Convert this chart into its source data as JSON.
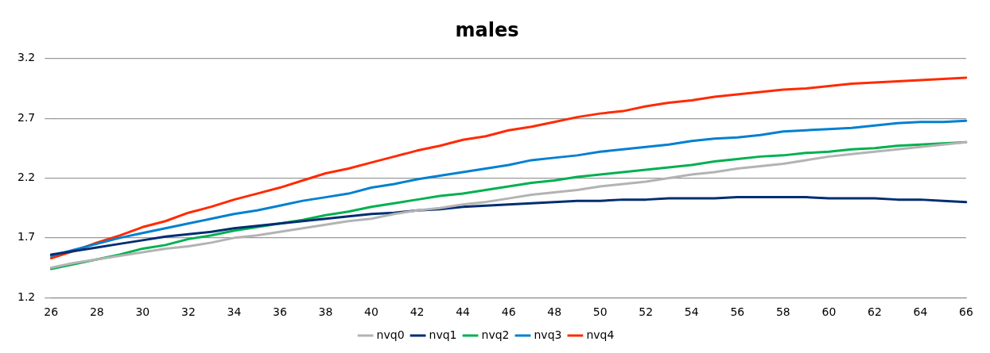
{
  "chart_data": {
    "type": "line",
    "title": "males",
    "categories": [
      "26",
      null,
      "28",
      null,
      "30",
      null,
      "32",
      null,
      "34",
      null,
      "36",
      null,
      "38",
      null,
      "40",
      null,
      "42",
      null,
      "44",
      null,
      "46",
      null,
      "48",
      null,
      "50",
      null,
      "52",
      null,
      "54",
      null,
      "56",
      null,
      "58",
      null,
      "60",
      null,
      "62",
      null,
      "64",
      null,
      "66"
    ],
    "series": [
      {
        "name": "nvq0",
        "color": "#b3b3b3",
        "values": [
          1.45,
          1.49,
          1.52,
          1.55,
          1.58,
          1.61,
          1.63,
          1.66,
          1.7,
          1.72,
          1.75,
          1.78,
          1.81,
          1.84,
          1.86,
          1.9,
          1.93,
          1.95,
          1.98,
          2.0,
          2.03,
          2.06,
          2.08,
          2.1,
          2.13,
          2.15,
          2.17,
          2.2,
          2.23,
          2.25,
          2.28,
          2.3,
          2.32,
          2.35,
          2.38,
          2.4,
          2.42,
          2.44,
          2.46,
          2.48,
          2.5
        ]
      },
      {
        "name": "nvq1",
        "color": "#002d72",
        "values": [
          1.56,
          1.59,
          1.62,
          1.65,
          1.68,
          1.71,
          1.73,
          1.75,
          1.78,
          1.8,
          1.82,
          1.84,
          1.86,
          1.88,
          1.9,
          1.91,
          1.93,
          1.94,
          1.96,
          1.97,
          1.98,
          1.99,
          2.0,
          2.01,
          2.01,
          2.02,
          2.02,
          2.03,
          2.03,
          2.03,
          2.04,
          2.04,
          2.04,
          2.04,
          2.03,
          2.03,
          2.03,
          2.02,
          2.02,
          2.01,
          2.0
        ]
      },
      {
        "name": "nvq2",
        "color": "#00b050",
        "values": [
          1.44,
          1.48,
          1.52,
          1.56,
          1.61,
          1.64,
          1.69,
          1.72,
          1.76,
          1.79,
          1.82,
          1.85,
          1.89,
          1.92,
          1.96,
          1.99,
          2.02,
          2.05,
          2.07,
          2.1,
          2.13,
          2.16,
          2.18,
          2.21,
          2.23,
          2.25,
          2.27,
          2.29,
          2.31,
          2.34,
          2.36,
          2.38,
          2.39,
          2.41,
          2.42,
          2.44,
          2.45,
          2.47,
          2.48,
          2.49,
          2.5
        ]
      },
      {
        "name": "nvq3",
        "color": "#0080d0",
        "values": [
          1.55,
          1.6,
          1.65,
          1.7,
          1.74,
          1.78,
          1.82,
          1.86,
          1.9,
          1.93,
          1.97,
          2.01,
          2.04,
          2.07,
          2.12,
          2.15,
          2.19,
          2.22,
          2.25,
          2.28,
          2.31,
          2.35,
          2.37,
          2.39,
          2.42,
          2.44,
          2.46,
          2.48,
          2.51,
          2.53,
          2.54,
          2.56,
          2.59,
          2.6,
          2.61,
          2.62,
          2.64,
          2.66,
          2.67,
          2.67,
          2.68
        ]
      },
      {
        "name": "nvq4",
        "color": "#ff2a00",
        "values": [
          1.53,
          1.59,
          1.66,
          1.72,
          1.79,
          1.84,
          1.91,
          1.96,
          2.02,
          2.07,
          2.12,
          2.18,
          2.24,
          2.28,
          2.33,
          2.38,
          2.43,
          2.47,
          2.52,
          2.55,
          2.6,
          2.63,
          2.67,
          2.71,
          2.74,
          2.76,
          2.8,
          2.83,
          2.85,
          2.88,
          2.9,
          2.92,
          2.94,
          2.95,
          2.97,
          2.99,
          3.0,
          3.01,
          3.02,
          3.03,
          3.04
        ]
      }
    ],
    "ylim": [
      1.2,
      3.2
    ],
    "yticks": [
      1.2,
      1.7,
      2.2,
      2.7,
      3.2
    ],
    "grid": "y",
    "legend": "bottom",
    "marker": "none",
    "line_style": "solid"
  }
}
